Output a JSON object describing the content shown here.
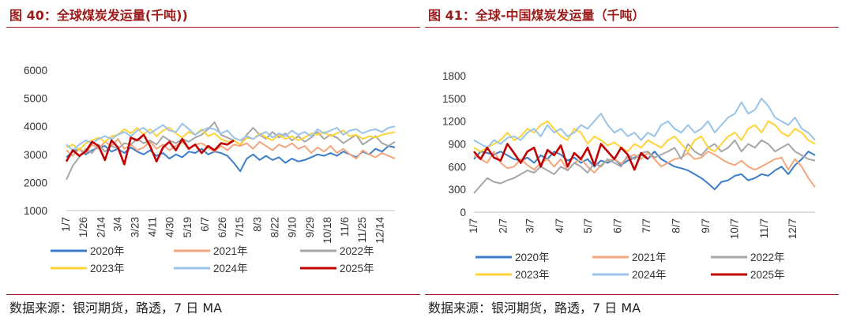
{
  "source_note": "数据来源：银河期货，路透，7 日 MA",
  "charts": [
    {
      "figure_title": "图 40：全球煤炭发运量(千吨))"
    },
    {
      "figure_title": "图 41：全球-中国煤炭发运量（千吨）"
    }
  ],
  "colors": {
    "title": "#9c1b1b",
    "2020年": "#3b7ec8",
    "2021年": "#f4a67c",
    "2022年": "#a6a6a6",
    "2023年": "#ffd338",
    "2024年": "#99c3e8",
    "2025年": "#c00000"
  },
  "chart_data": [
    {
      "type": "line",
      "title": "图 40：全球煤炭发运量(千吨))",
      "xlabel": "",
      "ylabel": "",
      "ylim": [
        1000,
        6000
      ],
      "yticks": [
        "1000",
        "2000",
        "3000",
        "4000",
        "5000",
        "6000"
      ],
      "x_tick_labels": [
        "1/7",
        "1/26",
        "2/14",
        "3/4",
        "3/23",
        "4/11",
        "4/30",
        "5/19",
        "6/7",
        "6/26",
        "7/15",
        "8/3",
        "8/22",
        "9/10",
        "9/29",
        "10/18",
        "11/6",
        "11/25",
        "12/14"
      ],
      "x_dates": [
        "01-07",
        "01-14",
        "01-21",
        "01-28",
        "02-04",
        "02-11",
        "02-18",
        "02-25",
        "03-04",
        "03-11",
        "03-18",
        "03-25",
        "04-01",
        "04-08",
        "04-15",
        "04-22",
        "04-29",
        "05-06",
        "05-13",
        "05-20",
        "05-27",
        "06-03",
        "06-10",
        "06-17",
        "06-24",
        "07-01",
        "07-08",
        "07-15",
        "07-22",
        "07-29",
        "08-05",
        "08-12",
        "08-19",
        "08-26",
        "09-02",
        "09-09",
        "09-16",
        "09-23",
        "09-30",
        "10-07",
        "10-14",
        "10-21",
        "10-28",
        "11-04",
        "11-11",
        "11-18",
        "11-25",
        "12-02",
        "12-09",
        "12-16",
        "12-23",
        "12-30"
      ],
      "grid": false,
      "legend": "bottom",
      "series": [
        {
          "name": "2020年",
          "values": [
            2900,
            3100,
            3200,
            3000,
            3150,
            3250,
            3300,
            3100,
            3200,
            3050,
            3250,
            3100,
            3000,
            3150,
            2950,
            3050,
            2850,
            3000,
            2900,
            3100,
            3050,
            3200,
            3000,
            3100,
            3050,
            2950,
            2700,
            2400,
            2850,
            3000,
            2800,
            2950,
            2800,
            2900,
            2700,
            2850,
            2750,
            2800,
            2900,
            3000,
            2950,
            3050,
            2950,
            3100,
            3000,
            2900,
            3100,
            3000,
            3200,
            3100,
            3300,
            3250
          ]
        },
        {
          "name": "2021年",
          "values": [
            3150,
            2950,
            3200,
            3050,
            3350,
            3200,
            3450,
            3300,
            3550,
            3200,
            3350,
            3150,
            3250,
            3450,
            3200,
            3350,
            3150,
            3300,
            3450,
            3200,
            3350,
            3400,
            3250,
            3100,
            3300,
            3150,
            3350,
            3300,
            3400,
            3200,
            3450,
            3300,
            3150,
            3350,
            3250,
            3400,
            3200,
            3300,
            3050,
            3250,
            3100,
            3300,
            3050,
            3200,
            3000,
            2850,
            3150,
            3000,
            2900,
            3050,
            2950,
            2850
          ]
        },
        {
          "name": "2022年",
          "values": [
            2100,
            2600,
            2900,
            3200,
            3050,
            3350,
            3100,
            3300,
            3200,
            3400,
            3350,
            3550,
            3400,
            3500,
            3350,
            3650,
            3500,
            3400,
            3550,
            3450,
            3600,
            3700,
            3900,
            4150,
            3700,
            3600,
            3500,
            3350,
            3700,
            3950,
            3700,
            3550,
            3800,
            3600,
            3750,
            3500,
            3650,
            3450,
            3600,
            3800,
            3550,
            3700,
            3600,
            3400,
            3550,
            3700,
            3350,
            3500,
            3650,
            3400,
            3300,
            3450
          ]
        },
        {
          "name": "2023年",
          "values": [
            3250,
            3350,
            3150,
            3400,
            3500,
            3600,
            3450,
            3650,
            3700,
            3900,
            3750,
            3950,
            3700,
            3900,
            3650,
            3850,
            3950,
            3750,
            3600,
            3800,
            3700,
            3900,
            3650,
            3750,
            3550,
            3450,
            3500,
            3350,
            3600,
            3550,
            3750,
            3600,
            3500,
            3700,
            3550,
            3650,
            3500,
            3600,
            3750,
            3700,
            3800,
            3650,
            3750,
            3850,
            3650,
            3700,
            3550,
            3650,
            3600,
            3700,
            3750,
            3800
          ]
        },
        {
          "name": "2024年",
          "values": [
            3350,
            3150,
            3350,
            3500,
            3400,
            3550,
            3650,
            3550,
            3700,
            3800,
            3650,
            3850,
            3950,
            3750,
            3900,
            4050,
            3850,
            3800,
            4100,
            3900,
            3700,
            3850,
            3950,
            3900,
            3750,
            3850,
            3600,
            3500,
            3650,
            3550,
            3700,
            3800,
            3600,
            3750,
            3650,
            3850,
            3700,
            3800,
            3650,
            3900,
            3750,
            3850,
            3950,
            3700,
            3850,
            3900,
            3750,
            3850,
            3900,
            3800,
            3950,
            4000
          ]
        },
        {
          "name": "2025年",
          "values": [
            2750,
            3150,
            2950,
            3100,
            3450,
            3300,
            2800,
            3500,
            3250,
            2650,
            3600,
            3500,
            3700,
            3300,
            2750,
            3250,
            3450,
            3150,
            3550,
            3200,
            3350,
            3050,
            3300,
            3150,
            3400,
            3350,
            3500
          ]
        }
      ]
    },
    {
      "type": "line",
      "title": "图 41：全球-中国煤炭发运量（千吨）",
      "xlabel": "",
      "ylabel": "",
      "ylim": [
        0,
        1800
      ],
      "yticks": [
        "0",
        "300",
        "600",
        "900",
        "1200",
        "1500",
        "1800"
      ],
      "x_tick_labels": [
        "1/7",
        "2/7",
        "3/7",
        "4/7",
        "5/7",
        "6/7",
        "7/7",
        "8/7",
        "9/7",
        "10/7",
        "11/7",
        "12/7"
      ],
      "x_dates": [
        "01-07",
        "01-14",
        "01-21",
        "01-28",
        "02-04",
        "02-11",
        "02-18",
        "02-25",
        "03-04",
        "03-11",
        "03-18",
        "03-25",
        "04-01",
        "04-08",
        "04-15",
        "04-22",
        "04-29",
        "05-06",
        "05-13",
        "05-20",
        "05-27",
        "06-03",
        "06-10",
        "06-17",
        "06-24",
        "07-01",
        "07-08",
        "07-15",
        "07-22",
        "07-29",
        "08-05",
        "08-12",
        "08-19",
        "08-26",
        "09-02",
        "09-09",
        "09-16",
        "09-23",
        "09-30",
        "10-07",
        "10-14",
        "10-21",
        "10-28",
        "11-04",
        "11-11",
        "11-18",
        "11-25",
        "12-02",
        "12-09",
        "12-16",
        "12-23",
        "12-30"
      ],
      "grid": false,
      "legend": "bottom",
      "series": [
        {
          "name": "2020年",
          "values": [
            700,
            800,
            780,
            760,
            800,
            750,
            700,
            680,
            720,
            650,
            750,
            700,
            800,
            760,
            680,
            720,
            650,
            700,
            600,
            680,
            650,
            700,
            620,
            680,
            720,
            760,
            700,
            800,
            700,
            650,
            600,
            580,
            550,
            500,
            450,
            380,
            300,
            400,
            420,
            480,
            500,
            420,
            450,
            500,
            480,
            550,
            600,
            500,
            620,
            700,
            800,
            750
          ]
        },
        {
          "name": "2021年",
          "values": [
            750,
            700,
            650,
            800,
            650,
            580,
            600,
            700,
            620,
            560,
            650,
            700,
            600,
            700,
            550,
            650,
            700,
            600,
            520,
            620,
            680,
            700,
            640,
            720,
            760,
            700,
            780,
            700,
            600,
            650,
            700,
            720,
            780,
            700,
            720,
            800,
            760,
            700,
            650,
            620,
            680,
            600,
            560,
            600,
            650,
            700,
            720,
            560,
            700,
            600,
            450,
            330
          ]
        },
        {
          "name": "2022年",
          "values": [
            250,
            350,
            450,
            400,
            380,
            420,
            450,
            500,
            550,
            520,
            600,
            550,
            500,
            600,
            550,
            650,
            600,
            520,
            650,
            600,
            700,
            650,
            600,
            750,
            700,
            780,
            800,
            720,
            760,
            800,
            850,
            700,
            900,
            800,
            750,
            850,
            900,
            800,
            850,
            950,
            800,
            900,
            850,
            950,
            900,
            800,
            850,
            900,
            800,
            750,
            700,
            680
          ]
        },
        {
          "name": "2023年",
          "values": [
            850,
            800,
            850,
            900,
            950,
            1050,
            950,
            1000,
            1100,
            1050,
            1150,
            1200,
            1100,
            1000,
            950,
            1100,
            1050,
            900,
            1000,
            950,
            880,
            920,
            850,
            800,
            900,
            850,
            950,
            900,
            850,
            950,
            1000,
            900,
            800,
            950,
            1000,
            850,
            800,
            900,
            1000,
            1050,
            950,
            1100,
            1150,
            1050,
            1200,
            1150,
            1050,
            1000,
            1100,
            1050,
            950,
            900
          ]
        },
        {
          "name": "2024年",
          "values": [
            950,
            900,
            850,
            950,
            900,
            980,
            1000,
            950,
            1050,
            1100,
            1000,
            1150,
            1050,
            1100,
            1000,
            1050,
            1150,
            1100,
            1200,
            1300,
            1150,
            1050,
            1100,
            1000,
            1050,
            950,
            1050,
            1000,
            1150,
            1200,
            1100,
            1050,
            1150,
            1050,
            1100,
            1200,
            1050,
            1150,
            1250,
            1300,
            1450,
            1300,
            1350,
            1500,
            1400,
            1250,
            1200,
            1150,
            1250,
            1100,
            1050,
            950
          ]
        },
        {
          "name": "2025年",
          "values": [
            800,
            700,
            850,
            720,
            680,
            900,
            780,
            650,
            800,
            850,
            600,
            820,
            750,
            880,
            600,
            780,
            700,
            850,
            620,
            900,
            800,
            700,
            850,
            760,
            560,
            780,
            700
          ]
        }
      ]
    }
  ]
}
